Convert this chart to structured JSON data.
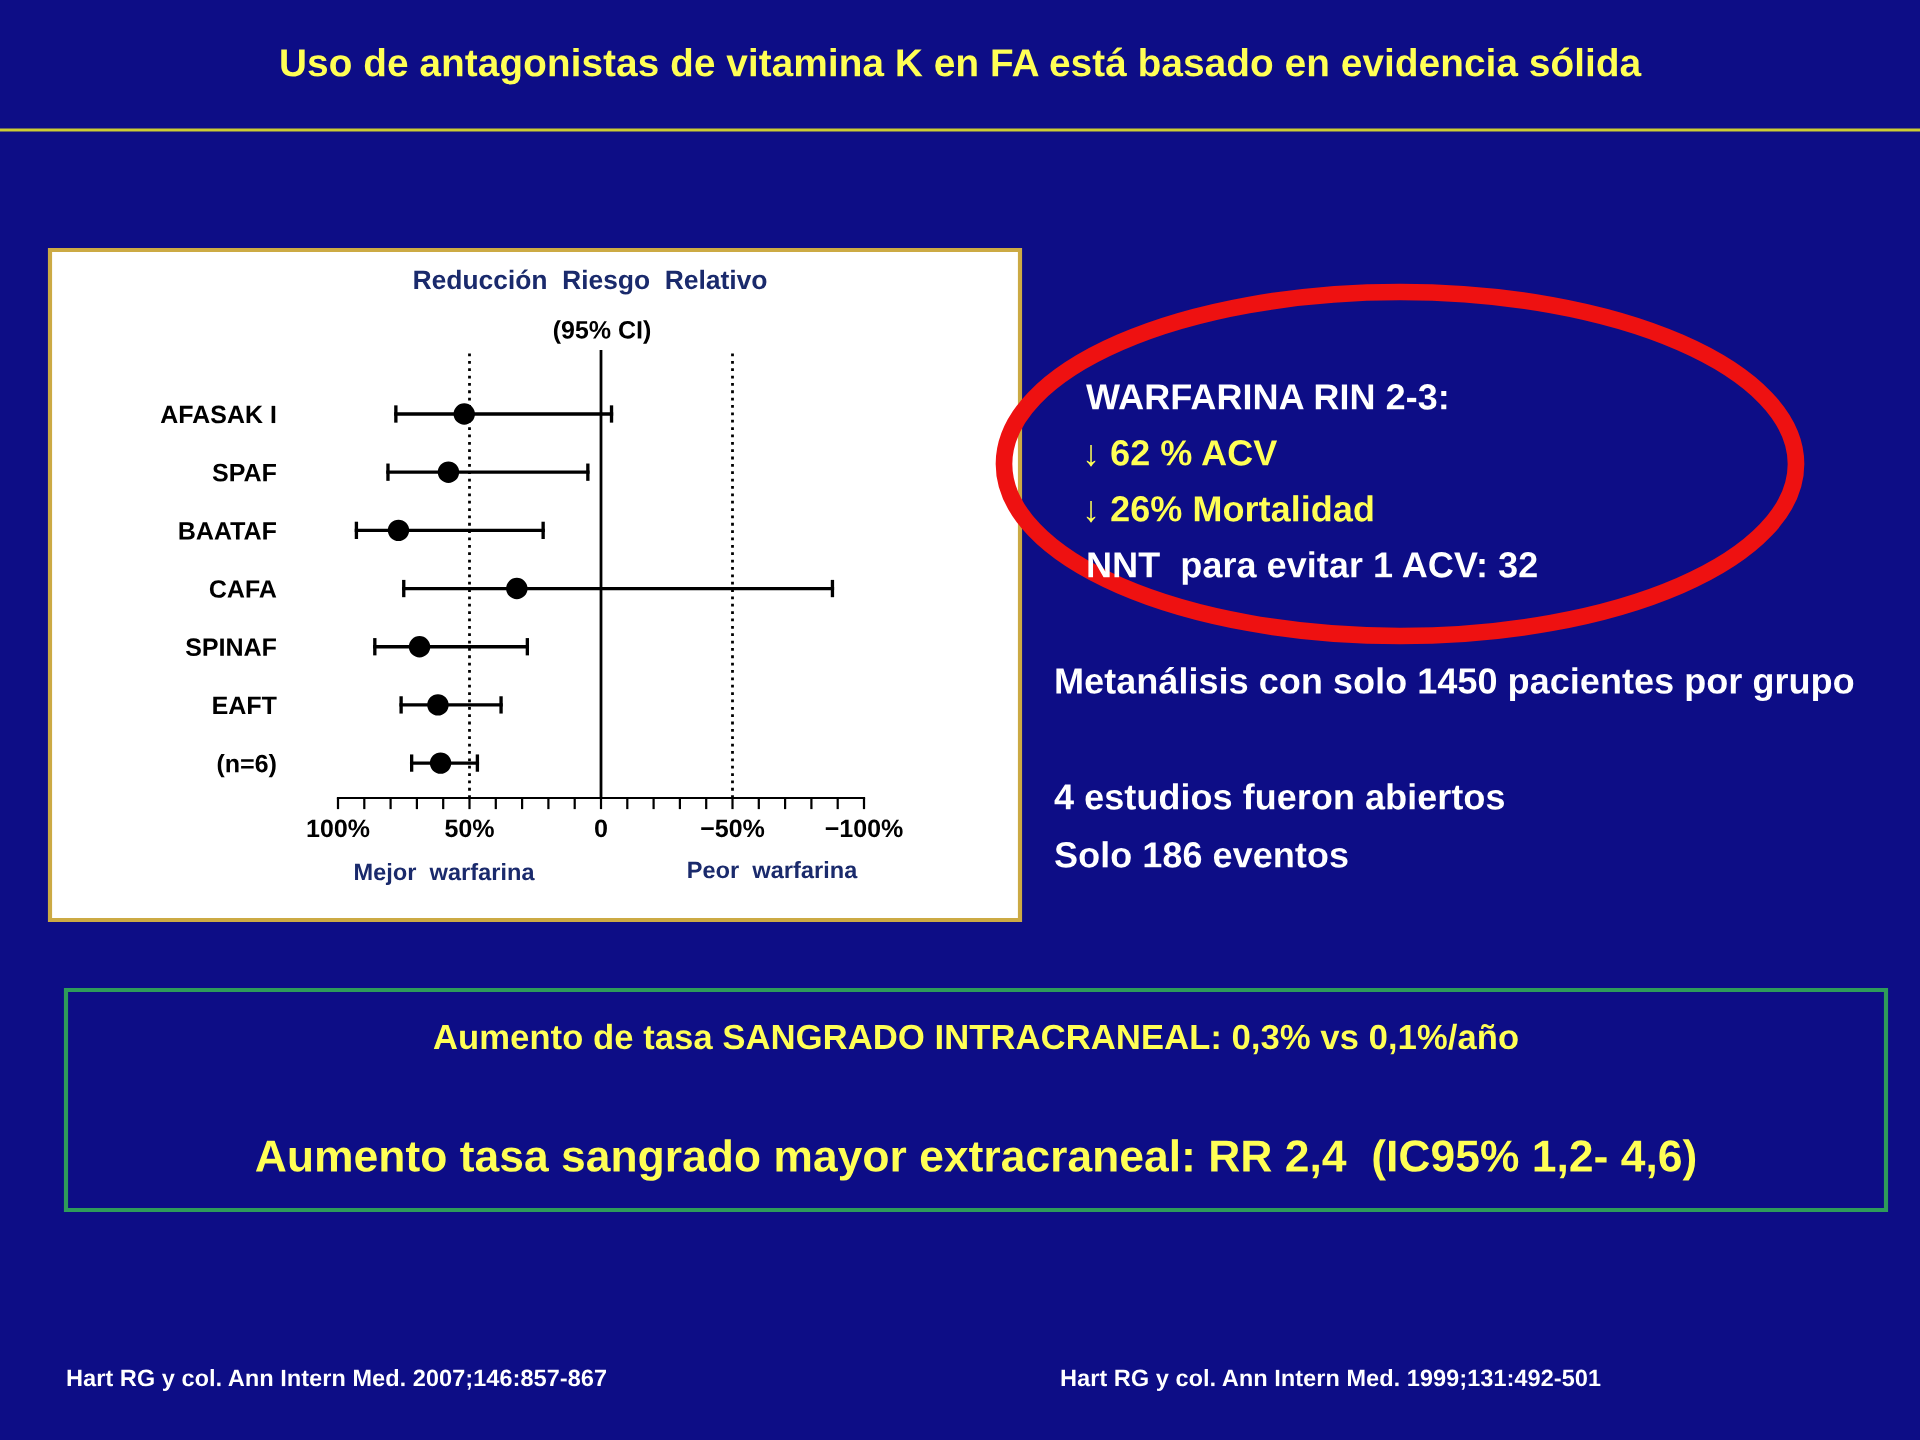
{
  "chart_data": {
    "type": "scatter",
    "orientation": "horizontal",
    "title": "Uso de antagonistas de vitamina K en FA está basado en evidencia sólida",
    "subtitle": "Reducción  Riesgo  Relativo",
    "categories": [
      "AFASAK I",
      "SPAF",
      "BAATAF",
      "CAFA",
      "SPINAF",
      "EAFT",
      "(n=6)"
    ],
    "values": [
      52,
      58,
      77,
      32,
      69,
      62,
      61
    ],
    "errors": [
      [
        -4,
        78
      ],
      [
        5,
        81
      ],
      [
        22,
        93
      ],
      [
        -88,
        75
      ],
      [
        28,
        86
      ],
      [
        38,
        76
      ],
      [
        47,
        72
      ]
    ],
    "color": "#000000",
    "marker": "circle",
    "xlim": [
      100,
      -100
    ],
    "xticks": [
      {
        "value": 100,
        "label": "100%"
      },
      {
        "value": 90,
        "label": null
      },
      {
        "value": 80,
        "label": null
      },
      {
        "value": 70,
        "label": null
      },
      {
        "value": 60,
        "label": null
      },
      {
        "value": 50,
        "label": "50%"
      },
      {
        "value": 40,
        "label": null
      },
      {
        "value": 30,
        "label": null
      },
      {
        "value": 20,
        "label": null
      },
      {
        "value": 10,
        "label": null
      },
      0,
      {
        "value": -10,
        "label": null
      },
      {
        "value": -20,
        "label": null
      },
      {
        "value": -30,
        "label": null
      },
      {
        "value": -40,
        "label": null
      },
      {
        "value": -50,
        "label": "−50%"
      },
      {
        "value": -60,
        "label": null
      },
      {
        "value": -70,
        "label": null
      },
      {
        "value": -80,
        "label": null
      },
      {
        "value": -90,
        "label": null
      },
      {
        "value": -100,
        "label": "−100%"
      }
    ],
    "ref_lines": [
      {
        "axis": "x",
        "value": 50,
        "color": "#000000",
        "line_style": "dotted"
      },
      {
        "axis": "x",
        "value": 0,
        "color": "#000000",
        "line_style": "solid"
      },
      {
        "axis": "x",
        "value": -50,
        "color": "#000000",
        "line_style": "dotted"
      }
    ],
    "annotations": [
      "(95% CI)",
      "Mejor  warfarina",
      "Peor  warfarina",
      "WARFARINA RIN 2-3:",
      "↓ 62 % ACV",
      "↓ 26% Mortalidad",
      "NNT  para evitar 1 ACV: 32",
      "Metanálisis con solo 1450 pacientes por grupo",
      "4 estudios fueron abiertos",
      "Solo 186 eventos",
      "Aumento de tasa SANGRADO INTRACRANEAL: 0,3% vs 0,1%/año",
      "Aumento tasa sangrado mayor extracraneal: RR 2,4  (IC95% 1,2- 4,6)",
      "Hart RG y col. Ann Intern Med. 2007;146:857-867",
      "Hart RG y col. Ann Intern Med. 1999;131:492-501"
    ]
  }
}
